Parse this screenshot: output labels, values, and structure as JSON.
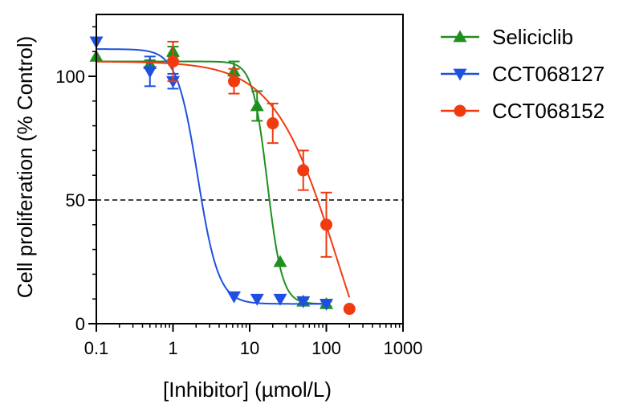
{
  "chart_data": {
    "type": "scatter",
    "xlabel": "[Inhibitor] (µmol/L)",
    "ylabel": "Cell proliferation (% Control)",
    "xscale": "log",
    "xlim": [
      0.1,
      1000
    ],
    "ylim": [
      0,
      125
    ],
    "xticks": [
      0.1,
      1,
      10,
      100,
      1000
    ],
    "xtick_labels": [
      "0.1",
      "1",
      "10",
      "100",
      "1000"
    ],
    "yticks": [
      0,
      50,
      100
    ],
    "ytick_labels": [
      "0",
      "50",
      "100"
    ],
    "reference_line": {
      "y": 50,
      "style": "dashed"
    },
    "legend_position": "right",
    "grid": false,
    "series": [
      {
        "name": "Seliciclib",
        "color": "#1f8f1f",
        "marker": "triangle-up",
        "x": [
          0.1,
          0.5,
          1,
          6.25,
          12.5,
          25,
          50,
          100
        ],
        "y": [
          108,
          105,
          110,
          102,
          88,
          25,
          9,
          8
        ],
        "err": [
          0,
          1.5,
          2,
          4,
          6,
          0,
          1,
          1
        ],
        "fit": {
          "top": 106,
          "bottom": 8,
          "ic50": 17,
          "hill": 4.5
        }
      },
      {
        "name": "CCT068127",
        "color": "#1f4fe0",
        "marker": "triangle-down",
        "x": [
          0.1,
          0.5,
          1,
          6.25,
          12.5,
          25,
          50,
          100
        ],
        "y": [
          114,
          102,
          98,
          11,
          10,
          10,
          9,
          8
        ],
        "err": [
          0,
          6,
          3,
          0,
          0,
          0,
          0,
          0
        ],
        "fit": {
          "top": 111,
          "bottom": 8,
          "ic50": 2.1,
          "hill": 3.2
        }
      },
      {
        "name": "CCT068152",
        "color": "#f03a10",
        "marker": "circle",
        "x": [
          1,
          6.25,
          20,
          50,
          100,
          200
        ],
        "y": [
          106,
          98,
          81,
          62,
          40,
          6
        ],
        "err": [
          8,
          5,
          8,
          8,
          13,
          0
        ],
        "fit": {
          "top": 106,
          "bottom": -55,
          "ic50": 140,
          "hill": 1.05
        }
      }
    ]
  }
}
